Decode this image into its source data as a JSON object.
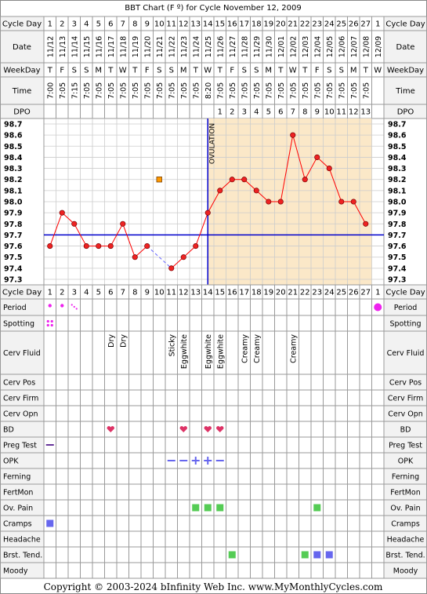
{
  "title": "BBT Chart (F º) for Cycle November 12, 2009",
  "labels": {
    "cycle_day": "Cycle Day",
    "date": "Date",
    "weekday": "WeekDay",
    "time": "Time",
    "dpo": "DPO",
    "ovulation": "OVULATION"
  },
  "cycle_days": [
    "1",
    "2",
    "3",
    "4",
    "5",
    "6",
    "7",
    "8",
    "9",
    "10",
    "11",
    "12",
    "13",
    "14",
    "15",
    "16",
    "17",
    "18",
    "19",
    "20",
    "21",
    "22",
    "23",
    "24",
    "25",
    "26",
    "27",
    "1"
  ],
  "dates": [
    "11/12",
    "11/13",
    "11/14",
    "11/15",
    "11/16",
    "11/17",
    "11/18",
    "11/19",
    "11/20",
    "11/21",
    "11/22",
    "11/23",
    "11/24",
    "11/25",
    "11/26",
    "11/27",
    "11/28",
    "11/29",
    "11/30",
    "12/01",
    "12/02",
    "12/03",
    "12/04",
    "12/05",
    "12/06",
    "12/07",
    "12/08",
    "12/09"
  ],
  "weekdays": [
    "T",
    "F",
    "S",
    "S",
    "M",
    "T",
    "W",
    "T",
    "F",
    "S",
    "S",
    "M",
    "T",
    "W",
    "T",
    "F",
    "S",
    "S",
    "M",
    "T",
    "W",
    "T",
    "F",
    "S",
    "S",
    "M",
    "T",
    "W"
  ],
  "times": [
    "7:00",
    "7:05",
    "7:15",
    "7:05",
    "7:05",
    "7:05",
    "7:05",
    "7:05",
    "7:05",
    "7:05",
    "7:05",
    "7:05",
    "7:05",
    "8:20",
    "7:05",
    "7:05",
    "7:05",
    "7:05",
    "7:05",
    "7:05",
    "7:05",
    "7:05",
    "7:05",
    "7:05",
    "7:05",
    "7:05",
    "7:05",
    ""
  ],
  "dpo": [
    "",
    "",
    "",
    "",
    "",
    "",
    "",
    "",
    "",
    "",
    "",
    "",
    "",
    "",
    "1",
    "2",
    "3",
    "4",
    "5",
    "6",
    "7",
    "8",
    "9",
    "10",
    "11",
    "12",
    "13",
    ""
  ],
  "chart_data": {
    "type": "line",
    "title": "BBT Chart (F º) for Cycle November 12, 2009",
    "x": [
      1,
      2,
      3,
      4,
      5,
      6,
      7,
      8,
      9,
      10,
      11,
      12,
      13,
      14,
      15,
      16,
      17,
      18,
      19,
      20,
      21,
      22,
      23,
      24,
      25,
      26,
      27
    ],
    "temps": [
      97.6,
      97.9,
      97.8,
      97.6,
      97.6,
      97.6,
      97.8,
      97.5,
      97.6,
      null,
      97.4,
      97.5,
      97.6,
      97.9,
      98.1,
      98.2,
      98.2,
      98.1,
      98.0,
      98.0,
      98.6,
      98.2,
      98.4,
      98.3,
      98.0,
      98.0,
      97.8
    ],
    "discarded": [
      {
        "day": 10,
        "temp": 98.2
      }
    ],
    "coverline": 97.7,
    "ovulation_day": 14,
    "ylim": [
      97.3,
      98.7
    ],
    "y_ticks": [
      "98.7",
      "98.6",
      "98.5",
      "98.4",
      "98.3",
      "98.2",
      "98.1",
      "98.0",
      "97.9",
      "97.8",
      "97.7",
      "97.6",
      "97.5",
      "97.4",
      "97.3"
    ],
    "grid": true
  },
  "cerv_fluid": {
    "6": "Dry",
    "7": "Dry",
    "11": "Sticky",
    "12": "Eggwhite",
    "14": "Eggwhite",
    "15": "Eggwhite",
    "17": "Creamy",
    "18": "Creamy",
    "21": "Creamy"
  },
  "rows": [
    {
      "label": "Period",
      "key": "period"
    },
    {
      "label": "Spotting",
      "key": "spotting"
    },
    {
      "label": "Cerv Fluid",
      "key": "cerv_fluid"
    },
    {
      "label": "Cerv Pos",
      "key": "cerv_pos"
    },
    {
      "label": "Cerv Firm",
      "key": "cerv_firm"
    },
    {
      "label": "Cerv Opn",
      "key": "cerv_opn"
    },
    {
      "label": "BD",
      "key": "bd"
    },
    {
      "label": "Preg Test",
      "key": "preg_test"
    },
    {
      "label": "OPK",
      "key": "opk"
    },
    {
      "label": "Ferning",
      "key": "ferning"
    },
    {
      "label": "FertMon",
      "key": "fertmon"
    },
    {
      "label": "Ov. Pain",
      "key": "ov_pain"
    },
    {
      "label": "Cramps",
      "key": "cramps"
    },
    {
      "label": "Headache",
      "key": "headache"
    },
    {
      "label": "Brst. Tend.",
      "key": "brst_tend"
    },
    {
      "label": "Moody",
      "key": "moody"
    }
  ],
  "marks": {
    "period": [
      1,
      2,
      3,
      28
    ],
    "spotting": [
      1
    ],
    "bd": [
      6,
      12,
      14,
      15
    ],
    "preg_test": [
      1
    ],
    "opk": [
      {
        "day": 11,
        "sym": "minus"
      },
      {
        "day": 12,
        "sym": "minus"
      },
      {
        "day": 13,
        "sym": "plus"
      },
      {
        "day": 14,
        "sym": "plus"
      },
      {
        "day": 15,
        "sym": "minus"
      }
    ],
    "ov_pain": [
      13,
      14,
      15,
      23
    ],
    "cramps": [
      1
    ],
    "brst_tend": [
      16,
      22,
      23,
      24
    ]
  },
  "colors": {
    "grid": "#cccccc",
    "line": "#ff0000",
    "point": "#ee2222",
    "coverline": "#0000cc",
    "ovulation": "#0000cc",
    "luteal_bg": "#fbe8c8",
    "period": "#ee22ee",
    "heart": "#dd3366",
    "green": "#55cc55",
    "blue": "#6666ee",
    "orange": "#ff9900",
    "dashed": "#6666ff"
  },
  "footer": "Copyright © 2003-2024 bInfinity Web Inc.    www.MyMonthlyCycles.com"
}
